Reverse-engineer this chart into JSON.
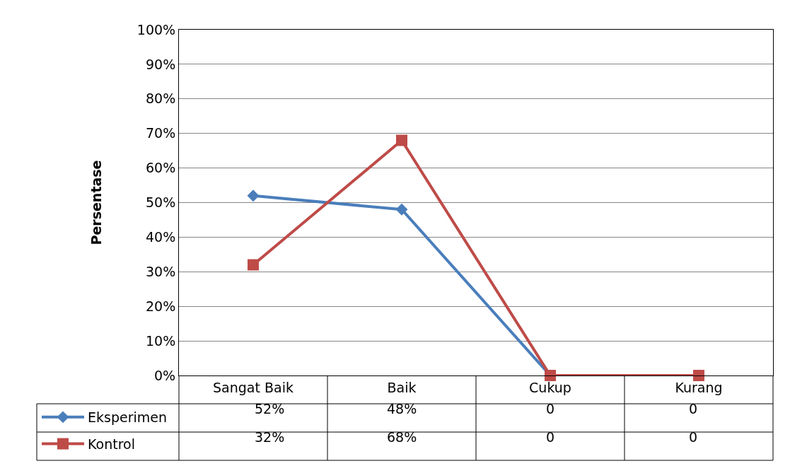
{
  "chart_data": {
    "type": "line",
    "ylabel": "Persentase",
    "categories": [
      "Sangat Baik",
      "Baik",
      "Cukup",
      "Kurang"
    ],
    "series": [
      {
        "name": "Eksperimen",
        "color": "#4a7ebb",
        "marker": "diamond",
        "values": [
          52,
          48,
          0,
          0
        ],
        "value_labels": [
          "52%",
          "48%",
          "0",
          "0"
        ]
      },
      {
        "name": "Kontrol",
        "color": "#be4b48",
        "marker": "square",
        "values": [
          32,
          68,
          0,
          0
        ],
        "value_labels": [
          "32%",
          "68%",
          "0",
          "0"
        ]
      }
    ],
    "ylim": [
      0,
      100
    ],
    "yticks": [
      {
        "value": 0,
        "label": "0%"
      },
      {
        "value": 10,
        "label": "10%"
      },
      {
        "value": 20,
        "label": "20%"
      },
      {
        "value": 30,
        "label": "30%"
      },
      {
        "value": 40,
        "label": "40%"
      },
      {
        "value": 50,
        "label": "50%"
      },
      {
        "value": 60,
        "label": "60%"
      },
      {
        "value": 70,
        "label": "70%"
      },
      {
        "value": 80,
        "label": "80%"
      },
      {
        "value": 90,
        "label": "90%"
      },
      {
        "value": 100,
        "label": "100%"
      }
    ],
    "grid": "y",
    "legend": "bottom left",
    "line_style": "solid"
  }
}
